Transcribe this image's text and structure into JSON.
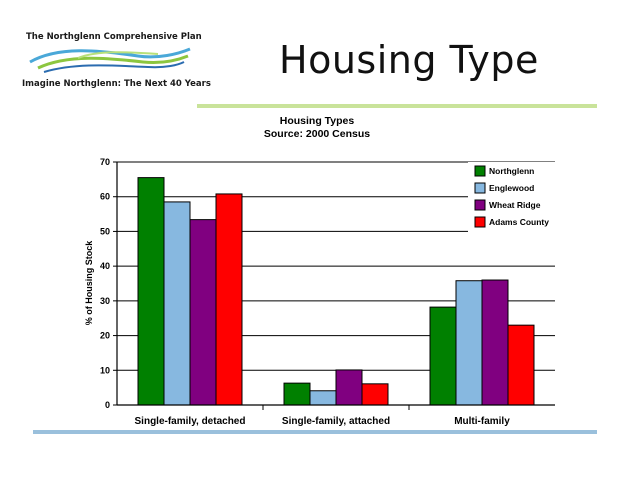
{
  "logo": {
    "title": "The Northglenn Comprehensive Plan",
    "tagline": "Imagine Northglenn: The Next 40 Years"
  },
  "slide": {
    "title": "Housing Type"
  },
  "colors": {
    "accent_green_rule": "#c9e39a",
    "accent_blue_rule": "#9ac0dc"
  },
  "chart_data": {
    "type": "bar",
    "title": "Housing Types",
    "subtitle": "Source: 2000 Census",
    "xlabel": "",
    "ylabel": "% of Housing Stock",
    "ylim": [
      0,
      70
    ],
    "yticks": [
      0,
      10,
      20,
      30,
      40,
      50,
      60,
      70
    ],
    "grid": true,
    "legend_position": "top-right",
    "categories": [
      "Single-family, detached",
      "Single-family, attached",
      "Multi-family"
    ],
    "series": [
      {
        "name": "Northglenn",
        "color": "#008000",
        "values": [
          65.5,
          6.3,
          28.2
        ]
      },
      {
        "name": "Englewood",
        "color": "#87b8e0",
        "values": [
          58.5,
          4.1,
          35.8
        ]
      },
      {
        "name": "Wheat Ridge",
        "color": "#800080",
        "values": [
          53.4,
          10.1,
          36.0
        ]
      },
      {
        "name": "Adams County",
        "color": "#ff0000",
        "values": [
          60.8,
          6.1,
          23.0
        ]
      }
    ]
  }
}
